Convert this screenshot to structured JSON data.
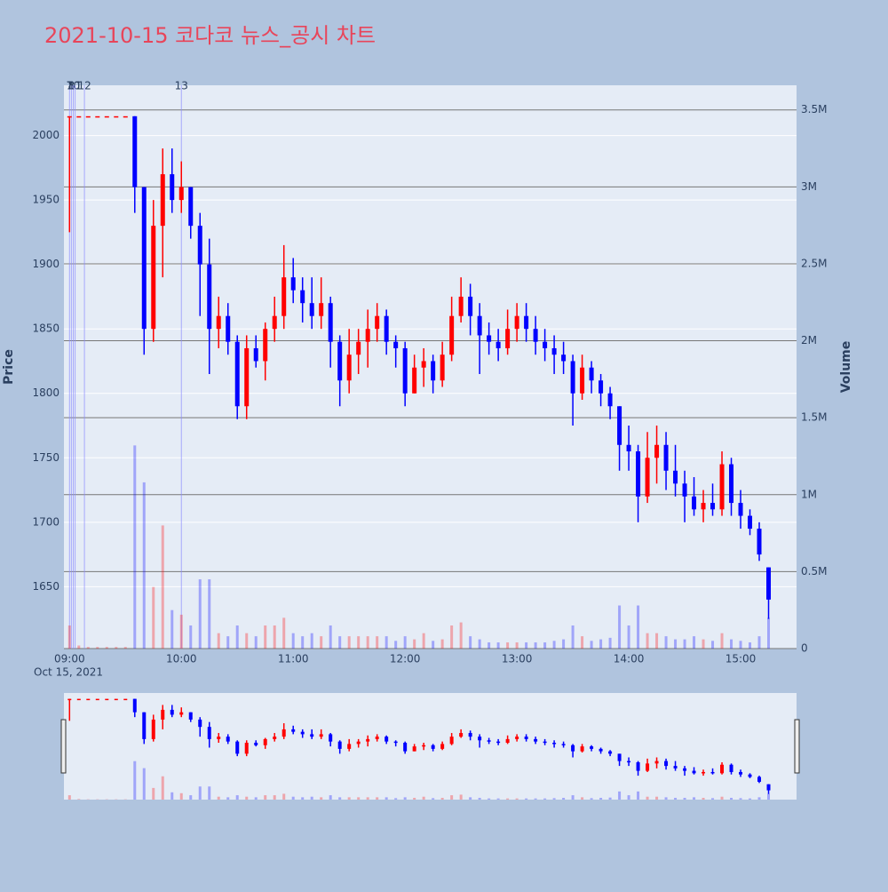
{
  "chart_data": {
    "type": "candlestick",
    "title": "2021-10-15 코다코 뉴스_공시 차트",
    "y_label": "Price",
    "y2_label": "Volume",
    "x_date_label": "Oct 15, 2021",
    "xlim": [
      "08:57",
      "15:30"
    ],
    "xticks": [
      "09:00",
      "10:00",
      "11:00",
      "12:00",
      "13:00",
      "14:00",
      "15:00"
    ],
    "ylim": [
      1602,
      2039
    ],
    "yticks": [
      1650,
      1700,
      1750,
      1800,
      1850,
      1900,
      1950,
      2000
    ],
    "y2lim": [
      0,
      3660000
    ],
    "y2ticks": [
      0,
      {
        "value": 500000,
        "label": "0.5M"
      },
      {
        "value": 1000000,
        "label": "1M"
      },
      {
        "value": 1500000,
        "label": "1.5M"
      },
      {
        "value": 2000000,
        "label": "2M"
      },
      {
        "value": 2500000,
        "label": "2.5M"
      },
      {
        "value": 3000000,
        "label": "3M"
      },
      {
        "value": 3500000,
        "label": "3.5M"
      }
    ],
    "increasing_color": "#ff0000",
    "decreasing_color": "#0000ff",
    "grid": true,
    "events": [
      {
        "x": "09:00",
        "label": "7"
      },
      {
        "x": "09:01",
        "label": "8"
      },
      {
        "x": "09:02",
        "label": "10"
      },
      {
        "x": "09:03",
        "label": "11"
      },
      {
        "x": "09:08",
        "label": "12"
      },
      {
        "x": "10:00",
        "label": "13"
      }
    ],
    "x": [
      "09:00",
      "09:05",
      "09:10",
      "09:15",
      "09:20",
      "09:25",
      "09:30",
      "09:35",
      "09:40",
      "09:45",
      "09:50",
      "09:55",
      "10:00",
      "10:05",
      "10:10",
      "10:15",
      "10:20",
      "10:25",
      "10:30",
      "10:35",
      "10:40",
      "10:45",
      "10:50",
      "10:55",
      "11:00",
      "11:05",
      "11:10",
      "11:15",
      "11:20",
      "11:25",
      "11:30",
      "11:35",
      "11:40",
      "11:45",
      "11:50",
      "11:55",
      "12:00",
      "12:05",
      "12:10",
      "12:15",
      "12:20",
      "12:25",
      "12:30",
      "12:35",
      "12:40",
      "12:45",
      "12:50",
      "12:55",
      "13:00",
      "13:05",
      "13:10",
      "13:15",
      "13:20",
      "13:25",
      "13:30",
      "13:35",
      "13:40",
      "13:45",
      "13:50",
      "13:55",
      "14:00",
      "14:05",
      "14:10",
      "14:15",
      "14:20",
      "14:25",
      "14:30",
      "14:35",
      "14:40",
      "14:45",
      "14:50",
      "14:55",
      "15:00",
      "15:05",
      "15:10",
      "15:15"
    ],
    "open": [
      2015,
      2015,
      2015,
      2015,
      2015,
      2015,
      2015,
      2015,
      1960,
      1850,
      1930,
      1970,
      1950,
      1960,
      1930,
      1900,
      1850,
      1860,
      1840,
      1790,
      1835,
      1825,
      1850,
      1860,
      1890,
      1880,
      1870,
      1860,
      1870,
      1840,
      1810,
      1830,
      1840,
      1850,
      1860,
      1840,
      1835,
      1800,
      1820,
      1825,
      1810,
      1830,
      1860,
      1875,
      1860,
      1845,
      1840,
      1835,
      1850,
      1860,
      1850,
      1840,
      1835,
      1830,
      1825,
      1800,
      1820,
      1810,
      1800,
      1790,
      1760,
      1755,
      1720,
      1750,
      1760,
      1740,
      1730,
      1720,
      1710,
      1715,
      1710,
      1745,
      1715,
      1705,
      1695,
      1665
    ],
    "high": [
      2015,
      2015,
      2015,
      2015,
      2015,
      2015,
      2015,
      2015,
      1960,
      1950,
      1990,
      1990,
      1980,
      1960,
      1940,
      1920,
      1875,
      1870,
      1845,
      1845,
      1845,
      1855,
      1875,
      1915,
      1905,
      1890,
      1890,
      1890,
      1875,
      1845,
      1850,
      1850,
      1865,
      1870,
      1865,
      1845,
      1840,
      1830,
      1835,
      1830,
      1840,
      1875,
      1890,
      1885,
      1870,
      1855,
      1850,
      1865,
      1870,
      1870,
      1860,
      1850,
      1845,
      1840,
      1830,
      1830,
      1825,
      1815,
      1805,
      1790,
      1775,
      1760,
      1770,
      1775,
      1770,
      1760,
      1740,
      1735,
      1725,
      1730,
      1755,
      1750,
      1725,
      1710,
      1700,
      1665
    ],
    "low": [
      1925,
      2015,
      2015,
      2015,
      2015,
      2015,
      2015,
      1940,
      1830,
      1840,
      1890,
      1940,
      1940,
      1920,
      1860,
      1815,
      1835,
      1830,
      1780,
      1780,
      1820,
      1810,
      1840,
      1850,
      1870,
      1855,
      1850,
      1850,
      1820,
      1790,
      1800,
      1815,
      1820,
      1840,
      1830,
      1820,
      1790,
      1800,
      1805,
      1800,
      1805,
      1825,
      1855,
      1845,
      1815,
      1830,
      1825,
      1830,
      1840,
      1840,
      1830,
      1825,
      1815,
      1815,
      1775,
      1795,
      1800,
      1790,
      1780,
      1740,
      1740,
      1700,
      1715,
      1730,
      1725,
      1720,
      1700,
      1705,
      1700,
      1705,
      1705,
      1705,
      1695,
      1690,
      1670,
      1625
    ],
    "close": [
      2015,
      2015,
      2015,
      2015,
      2015,
      2015,
      2015,
      1960,
      1850,
      1930,
      1970,
      1950,
      1960,
      1930,
      1900,
      1850,
      1860,
      1840,
      1790,
      1835,
      1825,
      1850,
      1860,
      1890,
      1880,
      1870,
      1860,
      1870,
      1840,
      1810,
      1830,
      1840,
      1850,
      1860,
      1840,
      1835,
      1800,
      1820,
      1825,
      1810,
      1830,
      1860,
      1875,
      1860,
      1845,
      1840,
      1835,
      1850,
      1860,
      1850,
      1840,
      1835,
      1830,
      1825,
      1800,
      1820,
      1810,
      1800,
      1790,
      1760,
      1755,
      1720,
      1750,
      1760,
      1740,
      1730,
      1720,
      1710,
      1715,
      1710,
      1745,
      1715,
      1705,
      1695,
      1675,
      1640
    ],
    "volume": [
      150000,
      20000,
      10000,
      10000,
      10000,
      10000,
      10000,
      1320000,
      1080000,
      400000,
      800000,
      250000,
      220000,
      150000,
      450000,
      450000,
      100000,
      80000,
      150000,
      100000,
      80000,
      150000,
      150000,
      200000,
      100000,
      80000,
      100000,
      80000,
      150000,
      80000,
      80000,
      80000,
      80000,
      80000,
      80000,
      50000,
      80000,
      60000,
      100000,
      50000,
      60000,
      150000,
      170000,
      80000,
      60000,
      40000,
      40000,
      40000,
      40000,
      40000,
      40000,
      40000,
      50000,
      60000,
      150000,
      80000,
      50000,
      60000,
      70000,
      280000,
      150000,
      280000,
      100000,
      100000,
      80000,
      60000,
      60000,
      80000,
      60000,
      50000,
      100000,
      60000,
      50000,
      40000,
      80000,
      200000
    ]
  }
}
